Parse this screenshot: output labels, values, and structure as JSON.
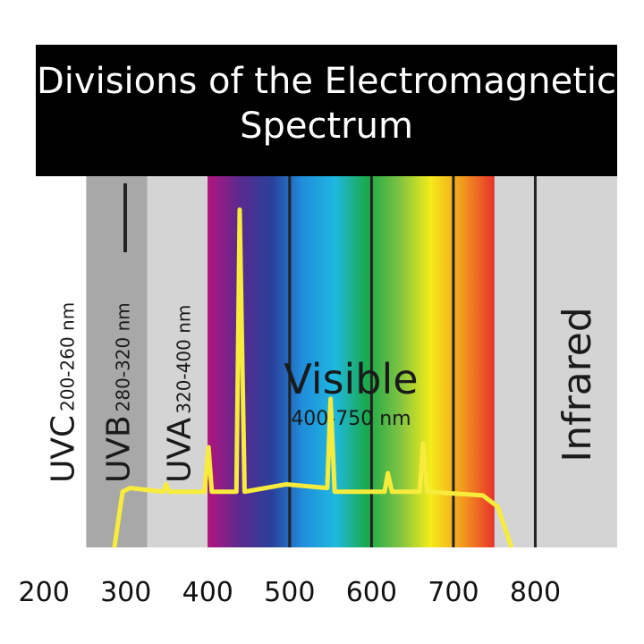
{
  "chart_data": {
    "type": "spectrum",
    "title": "Divisions of the Electromagnetic Spectrum",
    "bands": [
      {
        "label": "UVC",
        "range": "200-260 nm",
        "start": 190,
        "end": 252,
        "color": "#ffffff",
        "orient": "vertical"
      },
      {
        "label": "UVB",
        "range": "280-320 nm",
        "start": 252,
        "end": 326,
        "color": "#a8a8a8",
        "orient": "vertical"
      },
      {
        "label": "UVA",
        "range": "320-400 nm",
        "start": 326,
        "end": 400,
        "color": "#d4d4d4",
        "orient": "vertical"
      },
      {
        "label": "Visible",
        "range": "400-750 nm",
        "start": 400,
        "end": 750,
        "colors": [
          "#b3137f",
          "#5a2a8e",
          "#2a3f9a",
          "#1f8fdc",
          "#1fb8e0",
          "#19a94a",
          "#7cc242",
          "#f5ec1a",
          "#f39a1e",
          "#e8312a"
        ],
        "orient": "horizontal"
      },
      {
        "start": 750,
        "end": 800,
        "color": "#d4d4d4"
      },
      {
        "label": "Infrared",
        "start": 800,
        "end": 900,
        "color": "#d4d4d4",
        "orient": "vertical"
      }
    ],
    "series": [
      {
        "color": "#f7ec3c",
        "x": [
          286,
          296,
          305,
          346,
          349,
          353,
          396,
          401,
          405,
          435,
          439,
          445,
          496,
          546,
          550,
          555,
          616,
          620,
          625,
          659,
          663,
          668,
          736,
          754,
          771
        ],
        "values": [
          0,
          15,
          16,
          15,
          17,
          15,
          15,
          27,
          15,
          15,
          91,
          15,
          17,
          16,
          40,
          15,
          15,
          20,
          15,
          15,
          28,
          15,
          14,
          11,
          0
        ]
      }
    ],
    "xlim": [
      190,
      900
    ],
    "xticks": [
      200,
      300,
      400,
      500,
      600,
      700,
      800
    ],
    "ylim": [
      0,
      100
    ]
  }
}
